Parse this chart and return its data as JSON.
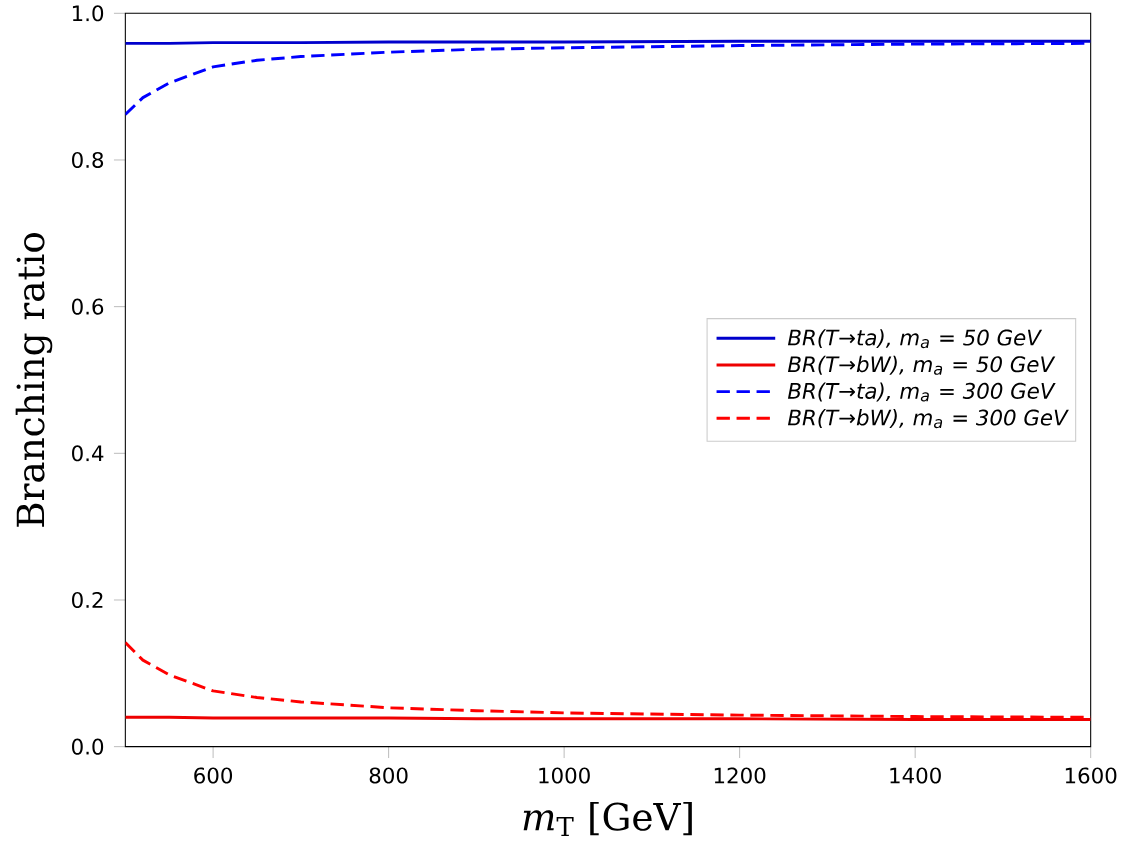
{
  "chart_data": {
    "type": "line",
    "xlabel": "*m*$_{T}$ [GeV]",
    "ylabel": "Branching ratio",
    "xlim": [
      500,
      1600
    ],
    "ylim": [
      0.0,
      1.0
    ],
    "xticks": [
      600,
      800,
      1000,
      1200,
      1400,
      1600
    ],
    "yticks": [
      {
        "value": 0,
        "label": "0.0"
      },
      {
        "value": 0.2,
        "label": "0.2"
      },
      {
        "value": 0.4,
        "label": "0.4"
      },
      {
        "value": 0.6,
        "label": "0.6"
      },
      {
        "value": 0.8,
        "label": "0.8"
      },
      {
        "value": 1.0,
        "label": "1.0"
      }
    ],
    "grid": false,
    "legend": "right",
    "marker": "none",
    "x": [
      500,
      520,
      550,
      600,
      650,
      700,
      800,
      900,
      1000,
      1200,
      1400,
      1600
    ],
    "series": [
      {
        "name": "BR(T→ta), m$_{a}$ = 50 GeV",
        "color": "#0000cc",
        "line_style": "solid",
        "values": [
          0.959,
          0.959,
          0.959,
          0.96,
          0.96,
          0.96,
          0.961,
          0.961,
          0.961,
          0.962,
          0.962,
          0.962
        ]
      },
      {
        "name": "BR(T→bW), m$_{a}$ = 50 GeV",
        "color": "#ee0000",
        "line_style": "solid",
        "values": [
          0.04,
          0.04,
          0.04,
          0.039,
          0.039,
          0.039,
          0.039,
          0.038,
          0.038,
          0.038,
          0.037,
          0.037
        ]
      },
      {
        "name": "BR(T→ta), m$_{a}$ = 300 GeV",
        "color": "#0000ff",
        "line_style": "dashed",
        "values": [
          0.862,
          0.885,
          0.905,
          0.927,
          0.936,
          0.941,
          0.947,
          0.951,
          0.953,
          0.956,
          0.958,
          0.959
        ]
      },
      {
        "name": "BR(T→bW), m$_{a}$ = 300 GeV",
        "color": "#ff0000",
        "line_style": "dashed",
        "values": [
          0.142,
          0.118,
          0.098,
          0.076,
          0.067,
          0.061,
          0.053,
          0.049,
          0.046,
          0.043,
          0.041,
          0.04
        ]
      }
    ]
  }
}
